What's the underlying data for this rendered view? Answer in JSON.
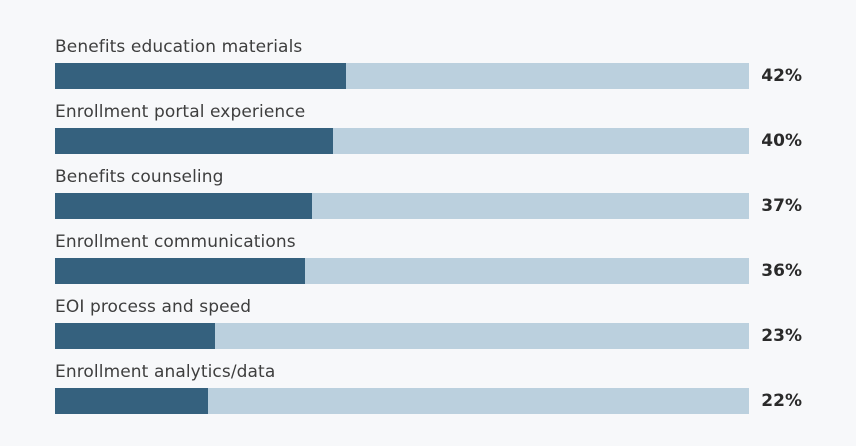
{
  "chart_data": {
    "type": "bar",
    "orientation": "horizontal",
    "title": "",
    "xlabel": "",
    "ylabel": "",
    "xlim": [
      0,
      100
    ],
    "grid": false,
    "legend": null,
    "categories": [
      "Benefits education materials",
      "Enrollment portal experience",
      "Benefits counseling",
      "Enrollment communications",
      "EOI process and speed",
      "Enrollment analytics/data"
    ],
    "values": [
      42,
      40,
      37,
      36,
      23,
      22
    ],
    "rows": [
      {
        "label": "Benefits education materials",
        "value": 42,
        "value_label": "42%"
      },
      {
        "label": "Enrollment portal experience",
        "value": 40,
        "value_label": "40%"
      },
      {
        "label": "Benefits counseling",
        "value": 37,
        "value_label": "37%"
      },
      {
        "label": "Enrollment communications",
        "value": 36,
        "value_label": "36%"
      },
      {
        "label": "EOI process and speed",
        "value": 23,
        "value_label": "23%"
      },
      {
        "label": "Enrollment analytics/data",
        "value": 22,
        "value_label": "22%"
      }
    ],
    "colors": {
      "bar_fill": "#35617e",
      "bar_track": "#bbd0de",
      "background": "#f7f8fa",
      "label_text": "#3e3e3e",
      "value_text": "#2a2a2a"
    }
  }
}
